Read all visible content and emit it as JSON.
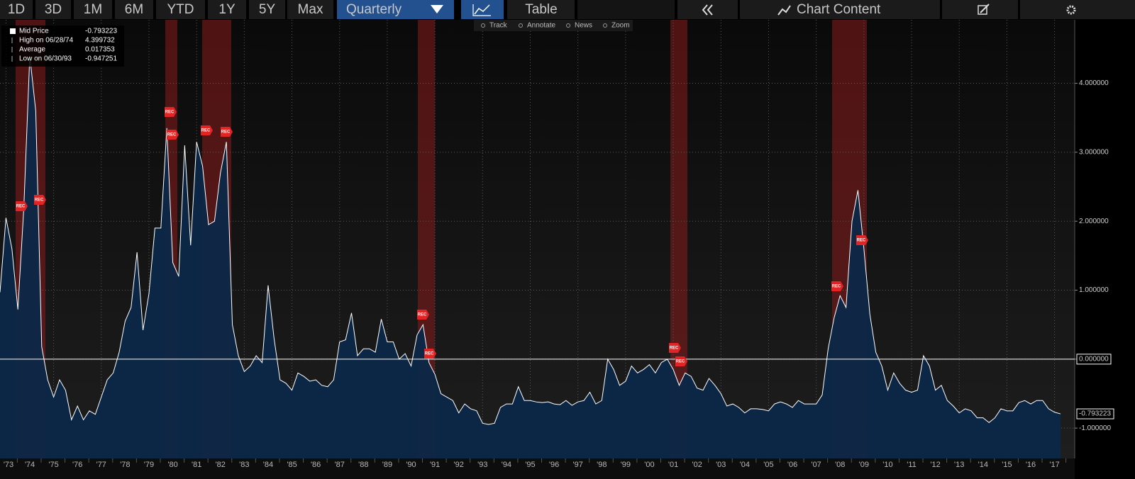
{
  "toolbar": {
    "ranges": [
      "1D",
      "3D",
      "1M",
      "6M",
      "YTD",
      "1Y",
      "5Y",
      "Max"
    ],
    "frequency": "Quarterly",
    "table": "Table",
    "chart_content": "Chart Content"
  },
  "chart_tools": [
    "Track",
    "Annotate",
    "News",
    "Zoom"
  ],
  "chart_data": {
    "type": "area",
    "categories": [
      null,
      "'73",
      null,
      null,
      null,
      "'74",
      null,
      null,
      null,
      "'75",
      null,
      null,
      null,
      "'76",
      null,
      null,
      null,
      "'77",
      null,
      null,
      null,
      "'78",
      null,
      null,
      null,
      "'79",
      null,
      null,
      null,
      "'80",
      null,
      null,
      null,
      "'81",
      null,
      null,
      null,
      "'82",
      null,
      null,
      null,
      "'83",
      null,
      null,
      null,
      "'84",
      null,
      null,
      null,
      "'85",
      null,
      null,
      null,
      "'86",
      null,
      null,
      null,
      "'87",
      null,
      null,
      null,
      "'88",
      null,
      null,
      null,
      "'89",
      null,
      null,
      null,
      "'90",
      null,
      null,
      null,
      "'91",
      null,
      null,
      null,
      "'92",
      null,
      null,
      null,
      "'93",
      null,
      null,
      null,
      "'94",
      null,
      null,
      null,
      "'95",
      null,
      null,
      null,
      "'96",
      null,
      null,
      null,
      "'97",
      null,
      null,
      null,
      "'98",
      null,
      null,
      null,
      "'99",
      null,
      null,
      null,
      "'00",
      null,
      null,
      null,
      "'01",
      null,
      null,
      null,
      "'02",
      null,
      null,
      null,
      "'03",
      null,
      null,
      null,
      "'04",
      null,
      null,
      null,
      "'05",
      null,
      null,
      null,
      "'06",
      null,
      null,
      null,
      "'07",
      null,
      null,
      null,
      "'08",
      null,
      null,
      null,
      "'09",
      null,
      null,
      null,
      "'10",
      null,
      null,
      null,
      "'11",
      null,
      null,
      null,
      "'12",
      null,
      null,
      null,
      "'13",
      null,
      null,
      null,
      "'14",
      null,
      null,
      null,
      "'15",
      null,
      null,
      null,
      "'16",
      null,
      null,
      null,
      "'17",
      null
    ],
    "series": [
      {
        "name": "Mid Price",
        "color": "#ffffff",
        "fill": "#0c2748",
        "values": [
          0.97,
          2.05,
          1.6,
          0.72,
          2.2,
          4.399732,
          3.6,
          0.18,
          -0.3,
          -0.55,
          -0.3,
          -0.45,
          -0.88,
          -0.68,
          -0.88,
          -0.75,
          -0.8,
          -0.55,
          -0.3,
          -0.2,
          0.1,
          0.55,
          0.75,
          1.55,
          0.42,
          0.95,
          1.9,
          1.9,
          3.35,
          1.4,
          1.2,
          3.1,
          1.65,
          3.15,
          2.8,
          1.95,
          2.0,
          2.7,
          3.15,
          0.5,
          0.05,
          -0.18,
          -0.1,
          0.05,
          -0.05,
          1.07,
          0.3,
          -0.3,
          -0.35,
          -0.45,
          -0.2,
          -0.25,
          -0.32,
          -0.3,
          -0.38,
          -0.4,
          -0.3,
          0.25,
          0.28,
          0.67,
          0.05,
          0.15,
          0.15,
          0.1,
          0.58,
          0.25,
          0.25,
          0.0,
          0.08,
          -0.1,
          0.35,
          0.5,
          -0.05,
          -0.22,
          -0.5,
          -0.55,
          -0.6,
          -0.78,
          -0.65,
          -0.72,
          -0.75,
          -0.93,
          -0.947251,
          -0.93,
          -0.7,
          -0.65,
          -0.65,
          -0.4,
          -0.6,
          -0.6,
          -0.62,
          -0.63,
          -0.62,
          -0.65,
          -0.66,
          -0.6,
          -0.67,
          -0.62,
          -0.6,
          -0.48,
          -0.65,
          -0.6,
          0.0,
          -0.15,
          -0.38,
          -0.32,
          -0.1,
          -0.2,
          -0.15,
          -0.08,
          -0.2,
          -0.05,
          0.0,
          -0.15,
          -0.38,
          -0.2,
          -0.25,
          -0.42,
          -0.45,
          -0.28,
          -0.38,
          -0.5,
          -0.68,
          -0.65,
          -0.7,
          -0.78,
          -0.72,
          -0.72,
          -0.73,
          -0.75,
          -0.65,
          -0.62,
          -0.65,
          -0.7,
          -0.6,
          -0.65,
          -0.65,
          -0.65,
          -0.52,
          0.15,
          0.6,
          0.92,
          0.75,
          2.0,
          2.45,
          1.6,
          0.65,
          0.1,
          -0.1,
          -0.45,
          -0.2,
          -0.35,
          -0.45,
          -0.48,
          -0.45,
          0.05,
          -0.1,
          -0.45,
          -0.38,
          -0.6,
          -0.68,
          -0.78,
          -0.72,
          -0.75,
          -0.85,
          -0.85,
          -0.92,
          -0.85,
          -0.72,
          -0.75,
          -0.75,
          -0.63,
          -0.6,
          -0.65,
          -0.6,
          -0.6,
          -0.72,
          -0.77,
          -0.793223
        ]
      }
    ],
    "stats": [
      {
        "label": "High on 06/28/74",
        "value": 4.399732
      },
      {
        "label": "Average",
        "value": 0.017353
      },
      {
        "label": "Low on 06/30/93",
        "value": -0.947251
      }
    ],
    "recession_label": "REC",
    "ylim": [
      -1.44,
      4.92
    ],
    "yticks": [
      {
        "value": 4,
        "label": "4.000000"
      },
      {
        "value": 3,
        "label": "3.000000"
      },
      {
        "value": 2,
        "label": "2.000000"
      },
      {
        "value": 1,
        "label": "1.000000"
      },
      {
        "value": 0,
        "label": "0.000000"
      },
      {
        "value": -1,
        "label": "-1.000000"
      }
    ],
    "grid": true
  }
}
